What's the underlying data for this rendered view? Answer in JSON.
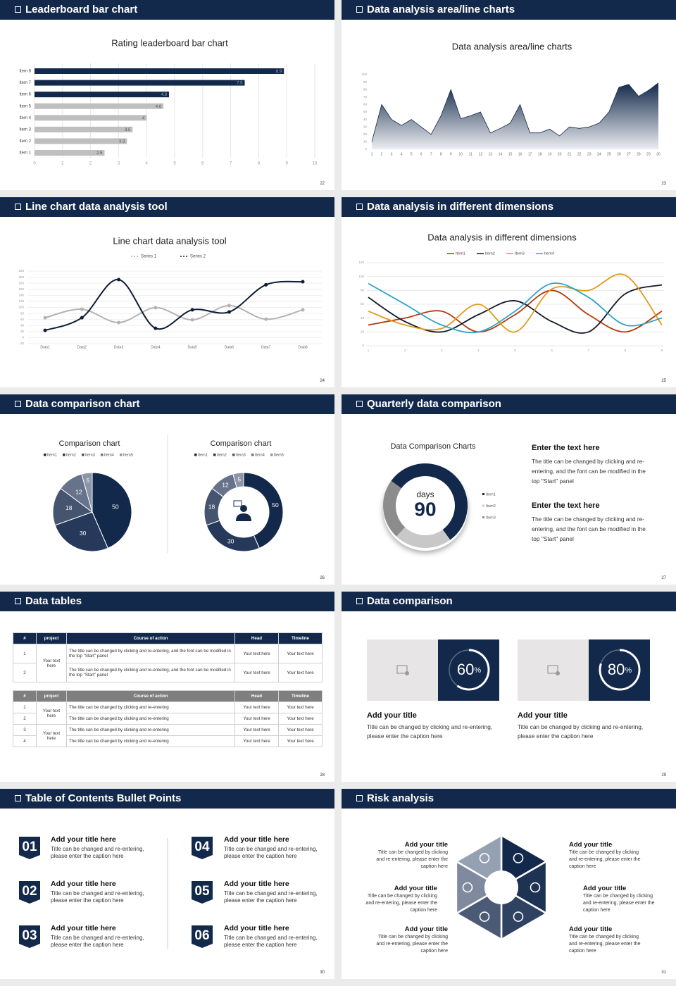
{
  "slides": [
    {
      "title": "Leaderboard bar chart",
      "page": "22",
      "chart_data": {
        "type": "bar",
        "title": "Rating leaderboard bar chart",
        "categories": [
          "Item 1",
          "Item 2",
          "Item 3",
          "Item 4",
          "Item 5",
          "Item 6",
          "Item 7",
          "Item 8"
        ],
        "values": [
          2.5,
          3.3,
          3.5,
          4,
          4.6,
          4.8,
          7.5,
          8.9
        ],
        "colors": [
          "#bfbfbf",
          "#bfbfbf",
          "#bfbfbf",
          "#bfbfbf",
          "#bfbfbf",
          "#13294b",
          "#13294b",
          "#13294b"
        ],
        "xlim": [
          0,
          10
        ],
        "xticks": [
          0,
          1,
          2,
          3,
          4,
          5,
          6,
          7,
          8,
          9,
          10
        ],
        "grid": true
      }
    },
    {
      "title": "Data analysis area/line charts",
      "page": "23",
      "chart_data": {
        "type": "area",
        "title": "Data analysis area/line charts",
        "x": [
          1,
          2,
          3,
          4,
          5,
          6,
          7,
          8,
          9,
          10,
          11,
          12,
          13,
          14,
          15,
          16,
          17,
          18,
          19,
          20,
          21,
          22,
          23,
          24,
          25,
          26,
          27,
          28,
          29,
          30
        ],
        "values": [
          10,
          60,
          40,
          32,
          40,
          30,
          20,
          45,
          80,
          41,
          45,
          50,
          22,
          28,
          35,
          60,
          22,
          22,
          27,
          18,
          30,
          28,
          30,
          35,
          50,
          83,
          87,
          71,
          79,
          89
        ],
        "color": "#13294b",
        "xlim": [
          1,
          30
        ],
        "xticks": [
          1,
          2,
          3,
          4,
          5,
          6,
          7,
          8,
          9,
          10,
          11,
          12,
          13,
          14,
          15,
          16,
          17,
          18,
          19,
          20,
          21,
          22,
          23,
          24,
          25,
          26,
          27,
          28,
          29,
          30
        ],
        "ylim": [
          0,
          100
        ],
        "yticks": [
          0,
          10,
          20,
          30,
          40,
          50,
          60,
          70,
          80,
          90,
          100
        ]
      }
    },
    {
      "title": "Line chart data analysis tool",
      "page": "24",
      "chart_data": {
        "type": "line",
        "title": "Line chart data analysis tool",
        "categories": [
          "Data1",
          "Data2",
          "Data3",
          "Data4",
          "Data5",
          "Data6",
          "Data7",
          "Data8"
        ],
        "series": [
          {
            "name": "Series 1",
            "color": "#b3b3b3",
            "values": [
              66,
              94,
              50,
              99,
              59,
              106,
              61,
              92
            ]
          },
          {
            "name": "Series 2",
            "color": "#0d1b33",
            "values": [
              24,
              66,
              192,
              31,
              92,
              85,
              175,
              185
            ]
          }
        ],
        "ylim": [
          -20,
          220
        ],
        "yticks": [
          -20,
          0,
          20,
          40,
          60,
          80,
          100,
          120,
          140,
          160,
          180,
          200,
          220
        ],
        "grid": true
      }
    },
    {
      "title": "Data analysis in different dimensions",
      "page": "25",
      "chart_data": {
        "type": "line",
        "title": "Data analysis in different dimensions",
        "x": [
          1,
          2,
          3,
          4,
          5,
          6,
          7,
          8,
          9
        ],
        "series": [
          {
            "name": "Item1",
            "color": "#b33a0c",
            "values": [
              30,
              40,
              50,
              20,
              45,
              80,
              45,
              20,
              50
            ]
          },
          {
            "name": "Item2",
            "color": "#111827",
            "values": [
              70,
              35,
              20,
              45,
              65,
              35,
              20,
              75,
              88
            ]
          },
          {
            "name": "Item3",
            "color": "#e29a1c",
            "values": [
              50,
              30,
              25,
              60,
              20,
              82,
              80,
              102,
              30
            ]
          },
          {
            "name": "Item4",
            "color": "#2ea3c8",
            "values": [
              90,
              60,
              30,
              20,
              50,
              90,
              70,
              30,
              40
            ]
          }
        ],
        "xlim": [
          1,
          9
        ],
        "xticks": [
          1,
          2,
          3,
          4,
          5,
          6,
          7,
          8,
          9
        ],
        "ylim": [
          0,
          120
        ],
        "yticks": [
          0,
          20,
          40,
          60,
          80,
          100,
          120
        ],
        "grid": true
      }
    },
    {
      "title": "Data comparison chart",
      "page": "26",
      "chart_data": [
        {
          "type": "pie",
          "title": "Comparison chart",
          "categories": [
            "Item1",
            "Item2",
            "Item3",
            "Item4",
            "Item5"
          ],
          "values": [
            50,
            30,
            18,
            12,
            5
          ],
          "colors": [
            "#13294b",
            "#26395a",
            "#45556f",
            "#66738a",
            "#8b95a7"
          ]
        },
        {
          "type": "donut",
          "title": "Comparison chart",
          "categories": [
            "Item1",
            "Item2",
            "Item3",
            "Item4",
            "Item5"
          ],
          "values": [
            50,
            30,
            18,
            12,
            5
          ],
          "colors": [
            "#13294b",
            "#26395a",
            "#45556f",
            "#66738a",
            "#8b95a7"
          ]
        }
      ]
    },
    {
      "title": "Quarterly data comparison",
      "page": "27",
      "chart_data": {
        "type": "donut",
        "title": "Data Comparison Charts",
        "categories": [
          "Item1",
          "Item2",
          "Item3"
        ],
        "values": [
          55,
          22,
          23
        ],
        "colors": [
          "#13294b",
          "#c8c8c8",
          "#8c8c8c"
        ],
        "center_label": "days",
        "center_value": 90
      },
      "blocks": [
        {
          "heading": "Enter the text here",
          "text": "The title can be changed by clicking and re-entering, and the font can be modified in the top \"Start\" panel"
        },
        {
          "heading": "Enter the text here",
          "text": "The title can be changed by clicking and re-entering, and the font can be modified in the top \"Start\" panel"
        }
      ]
    },
    {
      "title": "Data tables",
      "page": "28",
      "tables": [
        {
          "header": [
            "#",
            "project",
            "Course of action",
            "Head",
            "Timeline"
          ],
          "groups": [
            {
              "project": "Your text here",
              "rows": [
                [
                  "1",
                  "The title can be changed by clicking and re-entering, and the font can be modified in the top \"Start\" panel",
                  "Your text here",
                  "Your text here"
                ],
                [
                  "2",
                  "The title can be changed by clicking and re-entering, and the font can be modified in the top \"Start\" panel",
                  "Your text here",
                  "Your text here"
                ]
              ]
            }
          ]
        },
        {
          "header": [
            "#",
            "project",
            "Course of action",
            "Head",
            "Timeline"
          ],
          "groups": [
            {
              "project": "Your text here",
              "rows": [
                [
                  "1",
                  "The title can be changed by clicking and re-entering",
                  "Your text here",
                  "Your text here"
                ],
                [
                  "2",
                  "The title can be changed by clicking and re-entering",
                  "Your text here",
                  "Your text here"
                ]
              ]
            },
            {
              "project": "Your text here",
              "rows": [
                [
                  "3",
                  "The title can be changed by clicking and re-entering",
                  "Your text here",
                  "Your text here"
                ],
                [
                  "4",
                  "The title can be changed by clicking and re-entering",
                  "Your text here",
                  "Your text here"
                ]
              ]
            }
          ]
        }
      ]
    },
    {
      "title": "Data comparison",
      "page": "29",
      "ring_range": [
        0,
        100
      ],
      "cards": [
        {
          "value": 60,
          "unit": "%",
          "title": "Add your title",
          "text": "Title can be changed by clicking and re-entering, please enter the caption here"
        },
        {
          "value": 80,
          "unit": "%",
          "title": "Add your title",
          "text": "Title can be changed by clicking and re-entering, please enter the caption here"
        }
      ]
    },
    {
      "title": "Table of Contents Bullet Points",
      "page": "30",
      "items": [
        {
          "number": "01",
          "title": "Add your title here",
          "text": "Title can be changed and re-entering, please enter the caption here"
        },
        {
          "number": "02",
          "title": "Add your title here",
          "text": "Title can be changed and re-entering, please enter the caption here"
        },
        {
          "number": "03",
          "title": "Add your title here",
          "text": "Title can be changed and re-entering, please enter the caption here"
        },
        {
          "number": "04",
          "title": "Add your title here",
          "text": "Title can be changed and re-entering, please enter the caption here"
        },
        {
          "number": "05",
          "title": "Add your title here",
          "text": "Title can be changed and re-entering, please enter the caption here"
        },
        {
          "number": "06",
          "title": "Add your title here",
          "text": "Title can be changed and re-entering, please enter the caption here"
        }
      ]
    },
    {
      "title": "Risk analysis",
      "page": "31",
      "blocks": [
        {
          "title": "Add your title",
          "text": "Title can be changed by clicking and re-entering, please enter the caption here"
        },
        {
          "title": "Add your title",
          "text": "Title can be changed by clicking and re-entering, please enter the caption here"
        },
        {
          "title": "Add your title",
          "text": "Title can be changed by clicking and re-entering, please enter the caption here"
        },
        {
          "title": "Add your title",
          "text": "Title can be changed by clicking and re-entering, please enter the caption here"
        },
        {
          "title": "Add your title",
          "text": "Title can be changed by clicking and re-entering, please enter the caption here"
        },
        {
          "title": "Add your title",
          "text": "Title can be changed by clicking and re-entering, please enter the caption here"
        }
      ]
    }
  ]
}
